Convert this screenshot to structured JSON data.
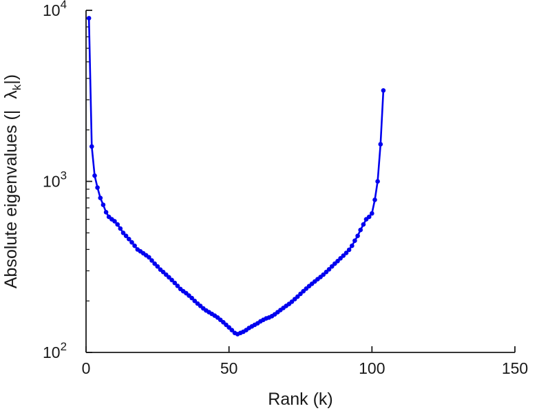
{
  "page": {
    "background": "#ffffff"
  },
  "labels": {
    "xlabel": "Rank (k)",
    "y_prefix": "Absolute eigenvalues (|",
    "y_lambda": "λ",
    "y_sub": "k",
    "y_suffix": "|)"
  },
  "chart_data": {
    "type": "line",
    "title": "",
    "xlabel": "Rank (k)",
    "ylabel": "Absolute eigenvalues (|λ_k|)",
    "x_scale": "linear",
    "y_scale": "log",
    "xlim": [
      0,
      150
    ],
    "ylim": [
      100,
      10000
    ],
    "x_ticks": [
      0,
      50,
      100,
      150
    ],
    "y_ticks": [
      100,
      1000,
      10000
    ],
    "y_tick_exponents": [
      2,
      3,
      4
    ],
    "grid": false,
    "legend": "none",
    "line_color": "#0000EE",
    "axis_color": "#191919",
    "marker": "filled-circle",
    "series": [
      {
        "name": "absolute-eigenvalues",
        "x_description": "rank k = 1..104",
        "y": [
          9000,
          1600,
          1080,
          920,
          800,
          730,
          660,
          620,
          600,
          585,
          560,
          530,
          500,
          480,
          460,
          440,
          420,
          400,
          390,
          380,
          370,
          360,
          345,
          330,
          318,
          305,
          295,
          285,
          275,
          265,
          255,
          245,
          235,
          228,
          222,
          215,
          208,
          200,
          193,
          187,
          181,
          176,
          172,
          168,
          164,
          160,
          155,
          150,
          145,
          140,
          135,
          130,
          128,
          130,
          132,
          135,
          139,
          142,
          145,
          148,
          152,
          155,
          158,
          160,
          163,
          167,
          172,
          177,
          182,
          187,
          192,
          198,
          205,
          212,
          220,
          228,
          236,
          244,
          252,
          260,
          268,
          276,
          285,
          295,
          306,
          318,
          330,
          342,
          355,
          368,
          382,
          398,
          420,
          450,
          480,
          520,
          560,
          600,
          620,
          650,
          780,
          1000,
          1650,
          3400
        ]
      }
    ]
  }
}
